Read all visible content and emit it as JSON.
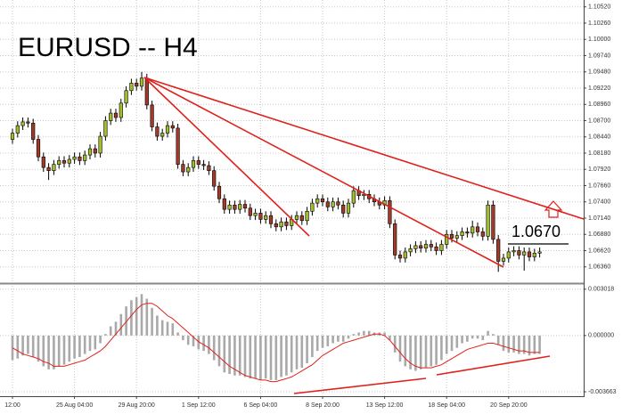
{
  "chart_data": [
    {
      "type": "candlestick",
      "title": "EURUSD -- H4",
      "annotation": "1.0670",
      "up_color": "#a3bd2f",
      "down_color": "#a23a2a",
      "wick_color": "#000000",
      "ylim": [
        1.061,
        1.1063
      ],
      "grid": true,
      "yticks": [
        {
          "value": 1.1052,
          "label": "1.10520"
        },
        {
          "value": 1.1026,
          "label": "1.10260"
        },
        {
          "value": 1.1,
          "label": "1.10000"
        },
        {
          "value": 1.0974,
          "label": "1.09740"
        },
        {
          "value": 1.0948,
          "label": "1.09480"
        },
        {
          "value": 1.0922,
          "label": "1.09220"
        },
        {
          "value": 1.0896,
          "label": "1.08960"
        },
        {
          "value": 1.087,
          "label": "1.08700"
        },
        {
          "value": 1.0844,
          "label": "1.08440"
        },
        {
          "value": 1.0818,
          "label": "1.08180"
        },
        {
          "value": 1.0792,
          "label": "1.07920"
        },
        {
          "value": 1.0766,
          "label": "1.07660"
        },
        {
          "value": 1.074,
          "label": "1.07400"
        },
        {
          "value": 1.0714,
          "label": "1.07140"
        },
        {
          "value": 1.0688,
          "label": "1.06880"
        },
        {
          "value": 1.0662,
          "label": "1.06620"
        },
        {
          "value": 1.0636,
          "label": "1.06360"
        }
      ],
      "open": [
        1.084,
        1.085,
        1.0862,
        1.0868,
        1.0866,
        1.084,
        1.0812,
        1.0795,
        1.079,
        1.08,
        1.0806,
        1.0802,
        1.0808,
        1.0812,
        1.0806,
        1.0815,
        1.0825,
        1.0818,
        1.0845,
        1.087,
        1.0882,
        1.0875,
        1.0898,
        1.0918,
        1.093,
        1.0925,
        1.0938,
        1.0895,
        1.086,
        1.0845,
        1.085,
        1.0862,
        1.0858,
        1.08,
        1.0788,
        1.0795,
        1.0806,
        1.08,
        1.0798,
        1.079,
        1.0765,
        1.0745,
        1.0728,
        1.0735,
        1.0728,
        1.0736,
        1.073,
        1.0718,
        1.0722,
        1.0712,
        1.0718,
        1.0705,
        1.07,
        1.0708,
        1.0702,
        1.0712,
        1.0718,
        1.071,
        1.0725,
        1.0738,
        1.0745,
        1.074,
        1.0732,
        1.074,
        1.0735,
        1.0722,
        1.0738,
        1.0758,
        1.075,
        1.0752,
        1.0745,
        1.074,
        1.0735,
        1.0742,
        1.0705,
        1.0655,
        1.065,
        1.066,
        1.0665,
        1.067,
        1.0666,
        1.0672,
        1.0668,
        1.0662,
        1.0672,
        1.0688,
        1.0682,
        1.0686,
        1.0692,
        1.069,
        1.07,
        1.0692,
        1.0685,
        1.0735,
        1.068,
        1.0645,
        1.065,
        1.066,
        1.0662,
        1.0655,
        1.066,
        1.0652,
        1.0658
      ],
      "high": [
        1.0857,
        1.0869,
        1.0875,
        1.0875,
        1.0873,
        1.0847,
        1.0819,
        1.0802,
        1.0807,
        1.0813,
        1.0813,
        1.0815,
        1.0819,
        1.0819,
        1.0822,
        1.0832,
        1.0832,
        1.0852,
        1.0877,
        1.0889,
        1.0889,
        1.0905,
        1.0925,
        1.0937,
        1.0937,
        1.0948,
        1.0945,
        1.0902,
        1.0867,
        1.0857,
        1.0869,
        1.0869,
        1.0865,
        1.0807,
        1.0802,
        1.0813,
        1.0813,
        1.0807,
        1.0805,
        1.0797,
        1.0772,
        1.0752,
        1.0742,
        1.0742,
        1.0743,
        1.0743,
        1.0737,
        1.0729,
        1.0729,
        1.0725,
        1.0725,
        1.0712,
        1.0715,
        1.0715,
        1.0719,
        1.0725,
        1.0725,
        1.0732,
        1.0745,
        1.0752,
        1.0752,
        1.0747,
        1.0747,
        1.0747,
        1.0742,
        1.0745,
        1.0765,
        1.0765,
        1.0759,
        1.0759,
        1.0752,
        1.0747,
        1.0749,
        1.0749,
        1.0712,
        1.0662,
        1.0667,
        1.0672,
        1.0677,
        1.0677,
        1.0679,
        1.0679,
        1.0675,
        1.0679,
        1.0695,
        1.0695,
        1.0693,
        1.0699,
        1.0699,
        1.071,
        1.0707,
        1.0699,
        1.0742,
        1.0742,
        1.0687,
        1.0657,
        1.0667,
        1.0669,
        1.0669,
        1.0667,
        1.0667,
        1.0665,
        1.0667
      ],
      "low": [
        1.0833,
        1.0843,
        1.0855,
        1.0859,
        1.0833,
        1.0805,
        1.0788,
        1.0775,
        1.0783,
        1.0793,
        1.0795,
        1.0795,
        1.0801,
        1.0799,
        1.0799,
        1.0808,
        1.0811,
        1.0811,
        1.0838,
        1.0863,
        1.0868,
        1.0868,
        1.0891,
        1.0911,
        1.0918,
        1.0918,
        1.0888,
        1.0853,
        1.0838,
        1.0838,
        1.0843,
        1.0851,
        1.0793,
        1.0781,
        1.0781,
        1.0788,
        1.0793,
        1.0791,
        1.0783,
        1.0758,
        1.0738,
        1.0721,
        1.0721,
        1.0721,
        1.0721,
        1.0723,
        1.0711,
        1.0711,
        1.0705,
        1.0705,
        1.0698,
        1.0693,
        1.0693,
        1.0695,
        1.0695,
        1.0705,
        1.0703,
        1.0703,
        1.0718,
        1.0731,
        1.0733,
        1.0725,
        1.0725,
        1.0728,
        1.0715,
        1.0715,
        1.0731,
        1.0743,
        1.0743,
        1.0738,
        1.0733,
        1.0728,
        1.0728,
        1.0698,
        1.0648,
        1.0643,
        1.0643,
        1.0653,
        1.0658,
        1.0659,
        1.0659,
        1.0661,
        1.0655,
        1.0655,
        1.0665,
        1.0675,
        1.0675,
        1.0679,
        1.0683,
        1.0683,
        1.0685,
        1.0678,
        1.0678,
        1.0673,
        1.0628,
        1.0638,
        1.0643,
        1.0653,
        1.0648,
        1.063,
        1.0645,
        1.0645,
        1.0651
      ],
      "close": [
        1.085,
        1.0862,
        1.0868,
        1.0866,
        1.084,
        1.0812,
        1.0795,
        1.079,
        1.08,
        1.0806,
        1.0802,
        1.0808,
        1.0812,
        1.0806,
        1.0815,
        1.0825,
        1.0818,
        1.0845,
        1.087,
        1.0882,
        1.0875,
        1.0898,
        1.0918,
        1.093,
        1.0925,
        1.0938,
        1.0895,
        1.086,
        1.0845,
        1.085,
        1.0862,
        1.0858,
        1.08,
        1.0788,
        1.0795,
        1.0806,
        1.08,
        1.0798,
        1.079,
        1.0765,
        1.0745,
        1.0728,
        1.0735,
        1.0728,
        1.0736,
        1.073,
        1.0718,
        1.0722,
        1.0712,
        1.0718,
        1.0705,
        1.07,
        1.0708,
        1.0702,
        1.0712,
        1.0718,
        1.071,
        1.0725,
        1.0738,
        1.0745,
        1.074,
        1.0732,
        1.074,
        1.0735,
        1.0722,
        1.0738,
        1.0758,
        1.075,
        1.0752,
        1.0745,
        1.074,
        1.0735,
        1.0742,
        1.0705,
        1.0655,
        1.065,
        1.066,
        1.0665,
        1.067,
        1.0666,
        1.0672,
        1.0668,
        1.0662,
        1.0672,
        1.0688,
        1.0682,
        1.0686,
        1.0692,
        1.069,
        1.07,
        1.0692,
        1.0685,
        1.0735,
        1.068,
        1.0645,
        1.065,
        1.066,
        1.0662,
        1.0655,
        1.066,
        1.0652,
        1.0658,
        1.066
      ]
    },
    {
      "type": "bar-line",
      "ylim": [
        -0.00395,
        0.0033
      ],
      "grid": true,
      "yticks": [
        {
          "value": 0.003018,
          "label": "0.003018"
        },
        {
          "value": 0,
          "label": "0.000000"
        },
        {
          "value": -0.003663,
          "label": "-0.003663"
        }
      ],
      "categories": [
        "12:00",
        null,
        null,
        null,
        null,
        null,
        null,
        null,
        null,
        null,
        null,
        null,
        "25 Aug 04:00",
        null,
        null,
        null,
        null,
        null,
        null,
        null,
        null,
        null,
        null,
        null,
        "29 Aug 20:00",
        null,
        null,
        null,
        null,
        null,
        null,
        null,
        null,
        null,
        null,
        null,
        "1 Sep 12:00",
        null,
        null,
        null,
        null,
        null,
        null,
        null,
        null,
        null,
        null,
        null,
        "6 Sep 04:00",
        null,
        null,
        null,
        null,
        null,
        null,
        null,
        null,
        null,
        null,
        null,
        "8 Sep 20:00",
        null,
        null,
        null,
        null,
        null,
        null,
        null,
        null,
        null,
        null,
        null,
        "13 Sep 12:00",
        null,
        null,
        null,
        null,
        null,
        null,
        null,
        null,
        null,
        null,
        null,
        "18 Sep 04:00",
        null,
        null,
        null,
        null,
        null,
        null,
        null,
        null,
        null,
        null,
        null,
        "20 Sep 20:00",
        null,
        null,
        null,
        null,
        null,
        null
      ],
      "series": [
        {
          "type": "bar",
          "color": "#a9a9a9",
          "values": [
            -0.0016,
            -0.0015,
            -0.0013,
            -0.0012,
            -0.0014,
            -0.0017,
            -0.002,
            -0.0022,
            -0.0022,
            -0.002,
            -0.0019,
            -0.0017,
            -0.0015,
            -0.0014,
            -0.0012,
            -0.001,
            -0.0009,
            -0.0005,
            0.0001,
            0.0006,
            0.0009,
            0.0014,
            0.0019,
            0.0023,
            0.0025,
            0.0027,
            0.0024,
            0.0018,
            0.0013,
            0.001,
            0.0009,
            0.0008,
            0.0002,
            -0.0003,
            -0.0006,
            -0.0007,
            -0.0009,
            -0.001,
            -0.0012,
            -0.0016,
            -0.002,
            -0.0024,
            -0.0025,
            -0.0026,
            -0.0026,
            -0.0027,
            -0.0028,
            -0.0028,
            -0.0029,
            -0.0028,
            -0.0029,
            -0.0029,
            -0.0027,
            -0.0026,
            -0.0024,
            -0.0022,
            -0.0021,
            -0.0018,
            -0.0014,
            -0.001,
            -0.0008,
            -0.0007,
            -0.0005,
            -0.0004,
            -0.0004,
            -0.0002,
            0.0001,
            0.0002,
            0.0003,
            0.0003,
            0.0002,
            0.0002,
            0.0002,
            -0.0003,
            -0.0011,
            -0.0017,
            -0.002,
            -0.0022,
            -0.0023,
            -0.0022,
            -0.0021,
            -0.002,
            -0.0019,
            -0.0016,
            -0.0012,
            -0.001,
            -0.0008,
            -0.0005,
            -0.0004,
            -0.0002,
            -0.0002,
            -0.0003,
            0.0003,
            0.0001,
            -0.0006,
            -0.001,
            -0.0011,
            -0.0011,
            -0.0012,
            -0.0012,
            -0.0013,
            -0.0012,
            -0.0012
          ]
        },
        {
          "type": "line",
          "color": "#e0201b",
          "values": [
            -0.0008,
            -0.001,
            -0.0012,
            -0.0013,
            -0.0014,
            -0.0015,
            -0.0017,
            -0.0018,
            -0.002,
            -0.002,
            -0.002,
            -0.0019,
            -0.0018,
            -0.0017,
            -0.0016,
            -0.0014,
            -0.0012,
            -0.001,
            -0.0007,
            -0.0003,
            0.0001,
            0.0005,
            0.0009,
            0.0013,
            0.0017,
            0.002,
            0.0021,
            0.0021,
            0.0019,
            0.0016,
            0.0013,
            0.0011,
            0.0008,
            0.0005,
            0.0002,
            -0.0001,
            -0.0004,
            -0.0006,
            -0.0008,
            -0.0011,
            -0.0014,
            -0.0017,
            -0.002,
            -0.0022,
            -0.0024,
            -0.0026,
            -0.0027,
            -0.0028,
            -0.0029,
            -0.0029,
            -0.003,
            -0.003,
            -0.0029,
            -0.0028,
            -0.0027,
            -0.0025,
            -0.0023,
            -0.0021,
            -0.0019,
            -0.0016,
            -0.0013,
            -0.0011,
            -0.0009,
            -0.0007,
            -0.0005,
            -0.0004,
            -0.0003,
            -0.0002,
            -0.0001,
            0.0,
            0.0001,
            0.0001,
            0.0,
            -0.0003,
            -0.0007,
            -0.0011,
            -0.0015,
            -0.0018,
            -0.002,
            -0.0021,
            -0.0021,
            -0.0021,
            -0.002,
            -0.0019,
            -0.0017,
            -0.0015,
            -0.0013,
            -0.0011,
            -0.0009,
            -0.0008,
            -0.0007,
            -0.0006,
            -0.0005,
            -0.0005,
            -0.0006,
            -0.0007,
            -0.0008,
            -0.0009,
            -0.001,
            -0.001,
            -0.0011,
            -0.0011,
            -0.0011
          ]
        }
      ]
    }
  ]
}
